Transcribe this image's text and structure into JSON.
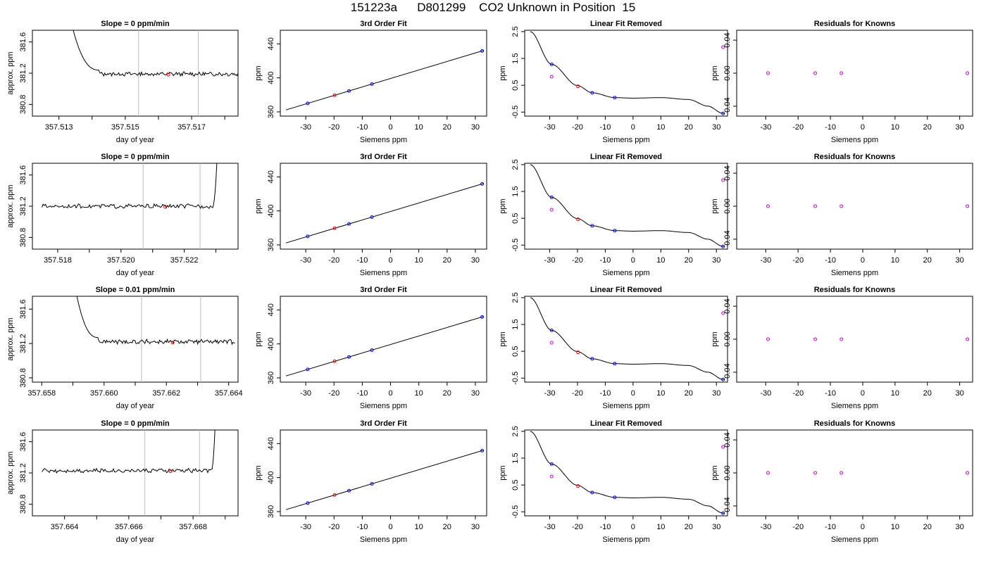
{
  "page": {
    "title": "151223a      D801299    CO2 Unknown in Position  15"
  },
  "labels": {
    "fit_title": "3rd Order Fit",
    "removed_title": "Linear Fit Removed",
    "resid_title": "Residuals for Knowns",
    "siemens_xlabel": "Siemens ppm",
    "ppm_ylabel": "ppm",
    "approx_ylabel": "approx. ppm",
    "doy_xlabel": "day of year"
  },
  "colors": {
    "line": "#000000",
    "known_point": "#0000ff",
    "unknown_point": "#ff0000",
    "removed_point": "#cc00cc",
    "marker_line": "#bebebe"
  },
  "chart_data": [
    {
      "type": "line",
      "panel": "time-series",
      "row": 1,
      "title": "Slope =  0  ppm/min",
      "xlabel": "day of year",
      "ylabel": "approx. ppm",
      "xlim": [
        357.5122,
        357.5184
      ],
      "ylim": [
        380.65,
        381.75
      ],
      "xticks": [
        357.513,
        357.514,
        357.515,
        357.516,
        357.517,
        357.518
      ],
      "xtick_labels": [
        "357.513",
        "",
        "357.515",
        "",
        "357.517",
        ""
      ],
      "yticks": [
        380.8,
        381.2,
        381.6
      ],
      "ytick_labels": [
        "380.8",
        "381.2",
        "381.6"
      ],
      "spike": {
        "side": "start",
        "x_start": 357.5134,
        "x_end": 357.5142,
        "y_peak": 381.75
      },
      "baseline": 381.19,
      "x_end": 357.5184,
      "markers": [
        357.5154,
        357.5172
      ],
      "unknown_point": {
        "x": 357.5163,
        "y": 381.18
      }
    },
    {
      "type": "scatter",
      "panel": "fit",
      "row": 1,
      "title": "3rd Order Fit",
      "xlabel": "Siemens ppm",
      "ylabel": "ppm",
      "xlim": [
        -39,
        34
      ],
      "ylim": [
        355,
        456
      ],
      "xticks": [
        -30,
        -20,
        -10,
        0,
        10,
        20,
        30
      ],
      "yticks": [
        360,
        400,
        440
      ],
      "curve_x": [
        -37,
        33
      ],
      "slope": 1.0,
      "intercept": 399.3,
      "knowns": [
        {
          "x": -29.3,
          "y": 370
        },
        {
          "x": -14.7,
          "y": 384.6
        },
        {
          "x": -6.6,
          "y": 392.7
        },
        {
          "x": 32.4,
          "y": 431.7
        }
      ],
      "unknown": {
        "x": -19.8,
        "y": 379.5
      }
    },
    {
      "type": "scatter",
      "panel": "linear-removed",
      "row": 1,
      "title": "Linear Fit Removed",
      "xlabel": "Siemens ppm",
      "ylabel": "ppm",
      "xlim": [
        -39,
        34
      ],
      "ylim": [
        -0.65,
        2.55
      ],
      "xticks": [
        -30,
        -20,
        -10,
        0,
        10,
        20,
        30
      ],
      "yticks": [
        -0.5,
        0.5,
        1.5,
        2.5
      ],
      "ytick_labels": [
        "-0.5",
        "0.5",
        "1.5",
        "2.5"
      ],
      "curve_x": [
        -37,
        33
      ],
      "curve_points": [
        [
          -37,
          2.5
        ],
        [
          -29.3,
          1.28
        ],
        [
          -20,
          0.49
        ],
        [
          -14.7,
          0.22
        ],
        [
          -6.6,
          0.04
        ],
        [
          0,
          0.02
        ],
        [
          10,
          0.04
        ],
        [
          20,
          -0.03
        ],
        [
          27,
          -0.28
        ],
        [
          32.4,
          -0.55
        ]
      ],
      "knowns": [
        {
          "x": -29.3,
          "y": 1.28
        },
        {
          "x": -14.7,
          "y": 0.22
        },
        {
          "x": -6.6,
          "y": 0.04
        },
        {
          "x": 32.4,
          "y": -0.55
        }
      ],
      "unknown": {
        "x": -19.8,
        "y": 0.46
      },
      "other_points": [
        {
          "x": -29.3,
          "y": 0.82
        },
        {
          "x": 32.4,
          "y": 1.92
        }
      ]
    },
    {
      "type": "scatter",
      "panel": "residuals",
      "row": 1,
      "title": "Residuals for Knowns",
      "xlabel": "Siemens ppm",
      "ylabel": "ppm",
      "xlim": [
        -39,
        34
      ],
      "ylim": [
        -0.052,
        0.052
      ],
      "xticks": [
        -30,
        -20,
        -10,
        0,
        10,
        20,
        30
      ],
      "yticks": [
        -0.04,
        0.0,
        0.04
      ],
      "ytick_labels": [
        "-0.04",
        "0.00",
        "0.04"
      ],
      "residuals": [
        {
          "x": -29.3,
          "y": 0.0
        },
        {
          "x": -14.7,
          "y": 0.0
        },
        {
          "x": -6.6,
          "y": 0.0
        },
        {
          "x": 32.4,
          "y": 0.0
        }
      ]
    },
    {
      "type": "line",
      "panel": "time-series",
      "row": 2,
      "title": "Slope =  0  ppm/min",
      "xlabel": "day of year",
      "ylabel": "approx. ppm",
      "xlim": [
        357.5172,
        357.5237
      ],
      "ylim": [
        380.65,
        381.75
      ],
      "xticks": [
        357.518,
        357.519,
        357.52,
        357.521,
        357.522,
        357.523
      ],
      "xtick_labels": [
        "357.518",
        "",
        "357.520",
        "",
        "357.522",
        ""
      ],
      "yticks": [
        380.8,
        381.2,
        381.6
      ],
      "ytick_labels": [
        "380.8",
        "381.2",
        "381.6"
      ],
      "spike": {
        "side": "end",
        "x_start": 357.5229,
        "x_end": 357.52305,
        "y_peak": 381.75
      },
      "baseline": 381.2,
      "x_start": 357.5175,
      "markers": [
        357.5207,
        357.5225
      ],
      "unknown_point": {
        "x": 357.5214,
        "y": 381.19
      }
    },
    {
      "type": "scatter",
      "panel": "fit",
      "row": 2,
      "title": "3rd Order Fit",
      "xlabel": "Siemens ppm",
      "ylabel": "ppm",
      "xlim": [
        -39,
        34
      ],
      "ylim": [
        355,
        456
      ],
      "xticks": [
        -30,
        -20,
        -10,
        0,
        10,
        20,
        30
      ],
      "yticks": [
        360,
        400,
        440
      ],
      "curve_x": [
        -37,
        33
      ],
      "slope": 1.0,
      "intercept": 399.3,
      "knowns": [
        {
          "x": -29.3,
          "y": 370
        },
        {
          "x": -14.7,
          "y": 384.6
        },
        {
          "x": -6.6,
          "y": 392.7
        },
        {
          "x": 32.4,
          "y": 431.7
        }
      ],
      "unknown": {
        "x": -19.8,
        "y": 379.5
      }
    },
    {
      "type": "scatter",
      "panel": "linear-removed",
      "row": 2,
      "title": "Linear Fit Removed",
      "xlabel": "Siemens ppm",
      "ylabel": "ppm",
      "xlim": [
        -39,
        34
      ],
      "ylim": [
        -0.65,
        2.55
      ],
      "xticks": [
        -30,
        -20,
        -10,
        0,
        10,
        20,
        30
      ],
      "yticks": [
        -0.5,
        0.5,
        1.5,
        2.5
      ],
      "ytick_labels": [
        "-0.5",
        "0.5",
        "1.5",
        "2.5"
      ],
      "curve_x": [
        -37,
        33
      ],
      "curve_points": [
        [
          -37,
          2.5
        ],
        [
          -29.3,
          1.28
        ],
        [
          -20,
          0.49
        ],
        [
          -14.7,
          0.22
        ],
        [
          -6.6,
          0.04
        ],
        [
          0,
          0.02
        ],
        [
          10,
          0.04
        ],
        [
          20,
          -0.03
        ],
        [
          27,
          -0.28
        ],
        [
          32.4,
          -0.55
        ]
      ],
      "knowns": [
        {
          "x": -29.3,
          "y": 1.28
        },
        {
          "x": -14.7,
          "y": 0.22
        },
        {
          "x": -6.6,
          "y": 0.04
        },
        {
          "x": 32.4,
          "y": -0.55
        }
      ],
      "unknown": {
        "x": -19.8,
        "y": 0.46
      },
      "other_points": [
        {
          "x": -29.3,
          "y": 0.82
        },
        {
          "x": 32.4,
          "y": 1.92
        }
      ]
    },
    {
      "type": "scatter",
      "panel": "residuals",
      "row": 2,
      "title": "Residuals for Knowns",
      "xlabel": "Siemens ppm",
      "ylabel": "ppm",
      "xlim": [
        -39,
        34
      ],
      "ylim": [
        -0.052,
        0.052
      ],
      "xticks": [
        -30,
        -20,
        -10,
        0,
        10,
        20,
        30
      ],
      "yticks": [
        -0.04,
        0.0,
        0.04
      ],
      "ytick_labels": [
        "-0.04",
        "0.00",
        "0.04"
      ],
      "residuals": [
        {
          "x": -29.3,
          "y": 0.0
        },
        {
          "x": -14.7,
          "y": 0.0
        },
        {
          "x": -6.6,
          "y": 0.0
        },
        {
          "x": 32.4,
          "y": 0.0
        }
      ]
    },
    {
      "type": "line",
      "panel": "time-series",
      "row": 3,
      "title": "Slope =  0.01  ppm/min",
      "xlabel": "day of year",
      "ylabel": "approx. ppm",
      "xlim": [
        357.6577,
        357.6643
      ],
      "ylim": [
        380.75,
        381.75
      ],
      "xticks": [
        357.658,
        357.659,
        357.66,
        357.661,
        357.662,
        357.663,
        357.664
      ],
      "xtick_labels": [
        "357.658",
        "",
        "357.660",
        "",
        "357.662",
        "",
        "357.664"
      ],
      "yticks": [
        380.8,
        381.2,
        381.6
      ],
      "ytick_labels": [
        "380.8",
        "381.2",
        "381.6"
      ],
      "spike": {
        "side": "start",
        "x_start": 357.6591,
        "x_end": 357.6598,
        "y_peak": 381.75
      },
      "baseline": 381.22,
      "x_end": 357.6642,
      "markers": [
        357.6612,
        357.6631
      ],
      "unknown_point": {
        "x": 357.6622,
        "y": 381.21
      }
    },
    {
      "type": "scatter",
      "panel": "fit",
      "row": 3,
      "title": "3rd Order Fit",
      "xlabel": "Siemens ppm",
      "ylabel": "ppm",
      "xlim": [
        -39,
        34
      ],
      "ylim": [
        355,
        456
      ],
      "xticks": [
        -30,
        -20,
        -10,
        0,
        10,
        20,
        30
      ],
      "yticks": [
        360,
        400,
        440
      ],
      "curve_x": [
        -37,
        33
      ],
      "slope": 1.0,
      "intercept": 399.3,
      "knowns": [
        {
          "x": -29.3,
          "y": 370
        },
        {
          "x": -14.7,
          "y": 384.6
        },
        {
          "x": -6.6,
          "y": 392.7
        },
        {
          "x": 32.4,
          "y": 431.7
        }
      ],
      "unknown": {
        "x": -19.8,
        "y": 379.5
      }
    },
    {
      "type": "scatter",
      "panel": "linear-removed",
      "row": 3,
      "title": "Linear Fit Removed",
      "xlabel": "Siemens ppm",
      "ylabel": "ppm",
      "xlim": [
        -39,
        34
      ],
      "ylim": [
        -0.65,
        2.55
      ],
      "xticks": [
        -30,
        -20,
        -10,
        0,
        10,
        20,
        30
      ],
      "yticks": [
        -0.5,
        0.5,
        1.5,
        2.5
      ],
      "ytick_labels": [
        "-0.5",
        "0.5",
        "1.5",
        "2.5"
      ],
      "curve_x": [
        -37,
        33
      ],
      "curve_points": [
        [
          -37,
          2.5
        ],
        [
          -29.3,
          1.28
        ],
        [
          -20,
          0.49
        ],
        [
          -14.7,
          0.22
        ],
        [
          -6.6,
          0.04
        ],
        [
          0,
          0.02
        ],
        [
          10,
          0.04
        ],
        [
          20,
          -0.03
        ],
        [
          27,
          -0.28
        ],
        [
          32.4,
          -0.55
        ]
      ],
      "knowns": [
        {
          "x": -29.3,
          "y": 1.28
        },
        {
          "x": -14.7,
          "y": 0.22
        },
        {
          "x": -6.6,
          "y": 0.04
        },
        {
          "x": 32.4,
          "y": -0.55
        }
      ],
      "unknown": {
        "x": -19.8,
        "y": 0.46
      },
      "other_points": [
        {
          "x": -29.3,
          "y": 0.82
        },
        {
          "x": 32.4,
          "y": 1.92
        }
      ]
    },
    {
      "type": "scatter",
      "panel": "residuals",
      "row": 3,
      "title": "Residuals for Knowns",
      "xlabel": "Siemens ppm",
      "ylabel": "ppm",
      "xlim": [
        -39,
        34
      ],
      "ylim": [
        -0.052,
        0.052
      ],
      "xticks": [
        -30,
        -20,
        -10,
        0,
        10,
        20,
        30
      ],
      "yticks": [
        -0.04,
        0.0,
        0.04
      ],
      "ytick_labels": [
        "-0.04",
        "0.00",
        "0.04"
      ],
      "residuals": [
        {
          "x": -29.3,
          "y": 0.0
        },
        {
          "x": -14.7,
          "y": 0.0
        },
        {
          "x": -6.6,
          "y": 0.0
        },
        {
          "x": 32.4,
          "y": 0.0
        }
      ]
    },
    {
      "type": "line",
      "panel": "time-series",
      "row": 4,
      "title": "Slope =  0  ppm/min",
      "xlabel": "day of year",
      "ylabel": "approx. ppm",
      "xlim": [
        357.663,
        357.6694
      ],
      "ylim": [
        380.65,
        381.75
      ],
      "xticks": [
        357.664,
        357.665,
        357.666,
        357.667,
        357.668,
        357.669
      ],
      "xtick_labels": [
        "357.664",
        "",
        "357.666",
        "",
        "357.668",
        ""
      ],
      "yticks": [
        380.8,
        381.2,
        381.6
      ],
      "ytick_labels": [
        "380.8",
        "381.2",
        "381.6"
      ],
      "spike": {
        "side": "end",
        "x_start": 357.66857,
        "x_end": 357.6687,
        "y_peak": 381.75
      },
      "baseline": 381.23,
      "x_start": 357.6633,
      "markers": [
        357.6665,
        357.6682
      ],
      "unknown_point": {
        "x": 357.6673,
        "y": 381.22
      }
    },
    {
      "type": "scatter",
      "panel": "fit",
      "row": 4,
      "title": "3rd Order Fit",
      "xlabel": "Siemens ppm",
      "ylabel": "ppm",
      "xlim": [
        -39,
        34
      ],
      "ylim": [
        355,
        456
      ],
      "xticks": [
        -30,
        -20,
        -10,
        0,
        10,
        20,
        30
      ],
      "yticks": [
        360,
        400,
        440
      ],
      "curve_x": [
        -37,
        33
      ],
      "slope": 1.0,
      "intercept": 399.3,
      "knowns": [
        {
          "x": -29.3,
          "y": 370
        },
        {
          "x": -14.7,
          "y": 384.6
        },
        {
          "x": -6.6,
          "y": 392.7
        },
        {
          "x": 32.4,
          "y": 431.7
        }
      ],
      "unknown": {
        "x": -19.8,
        "y": 379.5
      }
    },
    {
      "type": "scatter",
      "panel": "linear-removed",
      "row": 4,
      "title": "Linear Fit Removed",
      "xlabel": "Siemens ppm",
      "ylabel": "ppm",
      "xlim": [
        -39,
        34
      ],
      "ylim": [
        -0.65,
        2.55
      ],
      "xticks": [
        -30,
        -20,
        -10,
        0,
        10,
        20,
        30
      ],
      "yticks": [
        -0.5,
        0.5,
        1.5,
        2.5
      ],
      "ytick_labels": [
        "-0.5",
        "0.5",
        "1.5",
        "2.5"
      ],
      "curve_x": [
        -37,
        33
      ],
      "curve_points": [
        [
          -37,
          2.5
        ],
        [
          -29.3,
          1.28
        ],
        [
          -20,
          0.49
        ],
        [
          -14.7,
          0.22
        ],
        [
          -6.6,
          0.04
        ],
        [
          0,
          0.02
        ],
        [
          10,
          0.04
        ],
        [
          20,
          -0.03
        ],
        [
          27,
          -0.28
        ],
        [
          32.4,
          -0.55
        ]
      ],
      "knowns": [
        {
          "x": -29.3,
          "y": 1.28
        },
        {
          "x": -14.7,
          "y": 0.22
        },
        {
          "x": -6.6,
          "y": 0.04
        },
        {
          "x": 32.4,
          "y": -0.55
        }
      ],
      "unknown": {
        "x": -19.8,
        "y": 0.46
      },
      "other_points": [
        {
          "x": -29.3,
          "y": 0.82
        },
        {
          "x": 32.4,
          "y": 1.92
        }
      ]
    },
    {
      "type": "scatter",
      "panel": "residuals",
      "row": 4,
      "title": "Residuals for Knowns",
      "xlabel": "Siemens ppm",
      "ylabel": "ppm",
      "xlim": [
        -39,
        34
      ],
      "ylim": [
        -0.052,
        0.052
      ],
      "xticks": [
        -30,
        -20,
        -10,
        0,
        10,
        20,
        30
      ],
      "yticks": [
        -0.04,
        0.0,
        0.04
      ],
      "ytick_labels": [
        "-0.04",
        "0.00",
        "0.04"
      ],
      "residuals": [
        {
          "x": -29.3,
          "y": 0.0
        },
        {
          "x": -14.7,
          "y": 0.0
        },
        {
          "x": -6.6,
          "y": 0.0
        },
        {
          "x": 32.4,
          "y": 0.0
        }
      ]
    }
  ]
}
